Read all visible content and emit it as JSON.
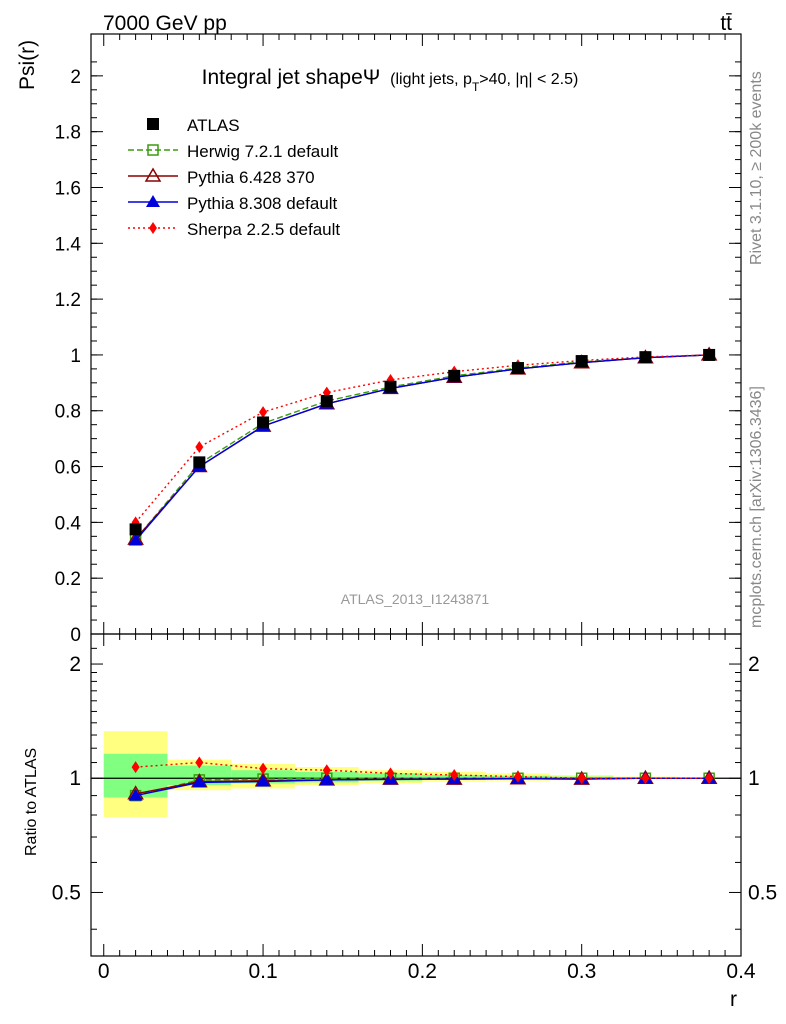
{
  "header": {
    "energy_label": "7000 GeV pp",
    "process_label": "tt̄"
  },
  "side_labels": {
    "rivet": "Rivet 3.1.10, ≥ 200k events",
    "mcplots": "mcplots.cern.ch [arXiv:1306.3436]"
  },
  "plot_title": {
    "main": "Integral jet shapeΨ",
    "sub_prefix": "(light jets, p",
    "sub_subscript": "T",
    "sub_suffix": ">40, |η| < 2.5)"
  },
  "analysis_id": "ATLAS_2013_I1243871",
  "chart_data": [
    {
      "type": "line",
      "panel": "main",
      "ylabel": "Psi(r)",
      "xlim": [
        -0.008,
        0.4
      ],
      "ylim": [
        0,
        2.15
      ],
      "y_ticks": [
        0,
        0.2,
        0.4,
        0.6,
        0.8,
        1,
        1.2,
        1.4,
        1.6,
        1.8,
        2
      ],
      "y_tick_labels": [
        "0",
        "0.2",
        "0.4",
        "0.6",
        "0.8",
        "1",
        "1.2",
        "1.4",
        "1.6",
        "1.8",
        "2"
      ],
      "x": [
        0.02,
        0.06,
        0.1,
        0.14,
        0.18,
        0.22,
        0.26,
        0.3,
        0.34,
        0.38
      ],
      "legend_position": "top-left",
      "series": [
        {
          "name": "ATLAS",
          "color": "#000000",
          "marker": "square-filled",
          "values": [
            0.375,
            0.615,
            0.758,
            0.835,
            0.886,
            0.925,
            0.953,
            0.978,
            0.992,
            1.0
          ]
        },
        {
          "name": "Herwig 7.2.1 default",
          "color": "#3a9c0e",
          "marker": "square-open",
          "line": "dashed",
          "values": [
            0.34,
            0.61,
            0.755,
            0.835,
            0.885,
            0.925,
            0.953,
            0.975,
            0.99,
            1.0
          ]
        },
        {
          "name": "Pythia 6.428 370",
          "color": "#8b0000",
          "marker": "triangle-open",
          "line": "solid",
          "values": [
            0.34,
            0.6,
            0.745,
            0.825,
            0.88,
            0.92,
            0.95,
            0.972,
            0.99,
            1.0
          ]
        },
        {
          "name": "Pythia 8.308 default",
          "color": "#0000dd",
          "marker": "triangle-filled",
          "line": "solid",
          "values": [
            0.335,
            0.6,
            0.745,
            0.825,
            0.88,
            0.92,
            0.95,
            0.972,
            0.99,
            1.0
          ]
        },
        {
          "name": "Sherpa 2.2.5 default",
          "color": "#ff0000",
          "marker": "diamond-filled",
          "line": "dotted",
          "values": [
            0.4,
            0.67,
            0.795,
            0.865,
            0.91,
            0.94,
            0.963,
            0.98,
            0.993,
            1.0
          ]
        }
      ]
    },
    {
      "type": "line",
      "panel": "ratio",
      "ylabel": "Ratio to ATLAS",
      "xlabel": "r",
      "xlim": [
        -0.008,
        0.4
      ],
      "ylim": [
        0.34,
        2.4
      ],
      "y_ticks": [
        0.5,
        1,
        2
      ],
      "y_tick_labels": [
        "0.5",
        "1",
        "2"
      ],
      "x_ticks": [
        0,
        0.1,
        0.2,
        0.3,
        0.4
      ],
      "x_tick_labels": [
        "0",
        "0.1",
        "0.2",
        "0.3",
        "0.4"
      ],
      "bands": {
        "bin_edges": [
          0.0,
          0.04,
          0.08,
          0.12,
          0.16,
          0.2,
          0.24,
          0.28,
          0.32,
          0.36,
          0.4
        ],
        "total_low": [
          0.79,
          0.93,
          0.94,
          0.96,
          0.97,
          0.98,
          0.985,
          0.99,
          0.995,
          0.998
        ],
        "total_high": [
          1.33,
          1.12,
          1.09,
          1.07,
          1.05,
          1.04,
          1.03,
          1.02,
          1.01,
          1.005
        ],
        "stat_low": [
          0.89,
          0.96,
          0.97,
          0.975,
          0.985,
          0.99,
          0.992,
          0.995,
          0.997,
          0.999
        ],
        "stat_high": [
          1.16,
          1.08,
          1.05,
          1.04,
          1.03,
          1.02,
          1.015,
          1.01,
          1.005,
          1.002
        ],
        "total_color": "#ffff80",
        "stat_color": "#80ff80"
      },
      "x": [
        0.02,
        0.06,
        0.1,
        0.14,
        0.18,
        0.22,
        0.26,
        0.3,
        0.34,
        0.38
      ],
      "series": [
        {
          "name": "Herwig 7.2.1 default",
          "values": [
            0.9,
            0.99,
            0.995,
            1.0,
            1.0,
            1.0,
            1.0,
            1.0,
            1.0,
            1.0
          ]
        },
        {
          "name": "Pythia 6.428 370",
          "values": [
            0.91,
            0.98,
            0.985,
            0.99,
            0.995,
            0.995,
            0.997,
            0.995,
            1.0,
            1.0
          ]
        },
        {
          "name": "Pythia 8.308 default",
          "values": [
            0.9,
            0.975,
            0.98,
            0.99,
            0.993,
            0.995,
            0.997,
            0.995,
            1.0,
            1.0
          ]
        },
        {
          "name": "Sherpa 2.2.5 default",
          "values": [
            1.07,
            1.1,
            1.06,
            1.05,
            1.03,
            1.02,
            1.01,
            1.0,
            1.0,
            1.0
          ]
        }
      ]
    }
  ]
}
